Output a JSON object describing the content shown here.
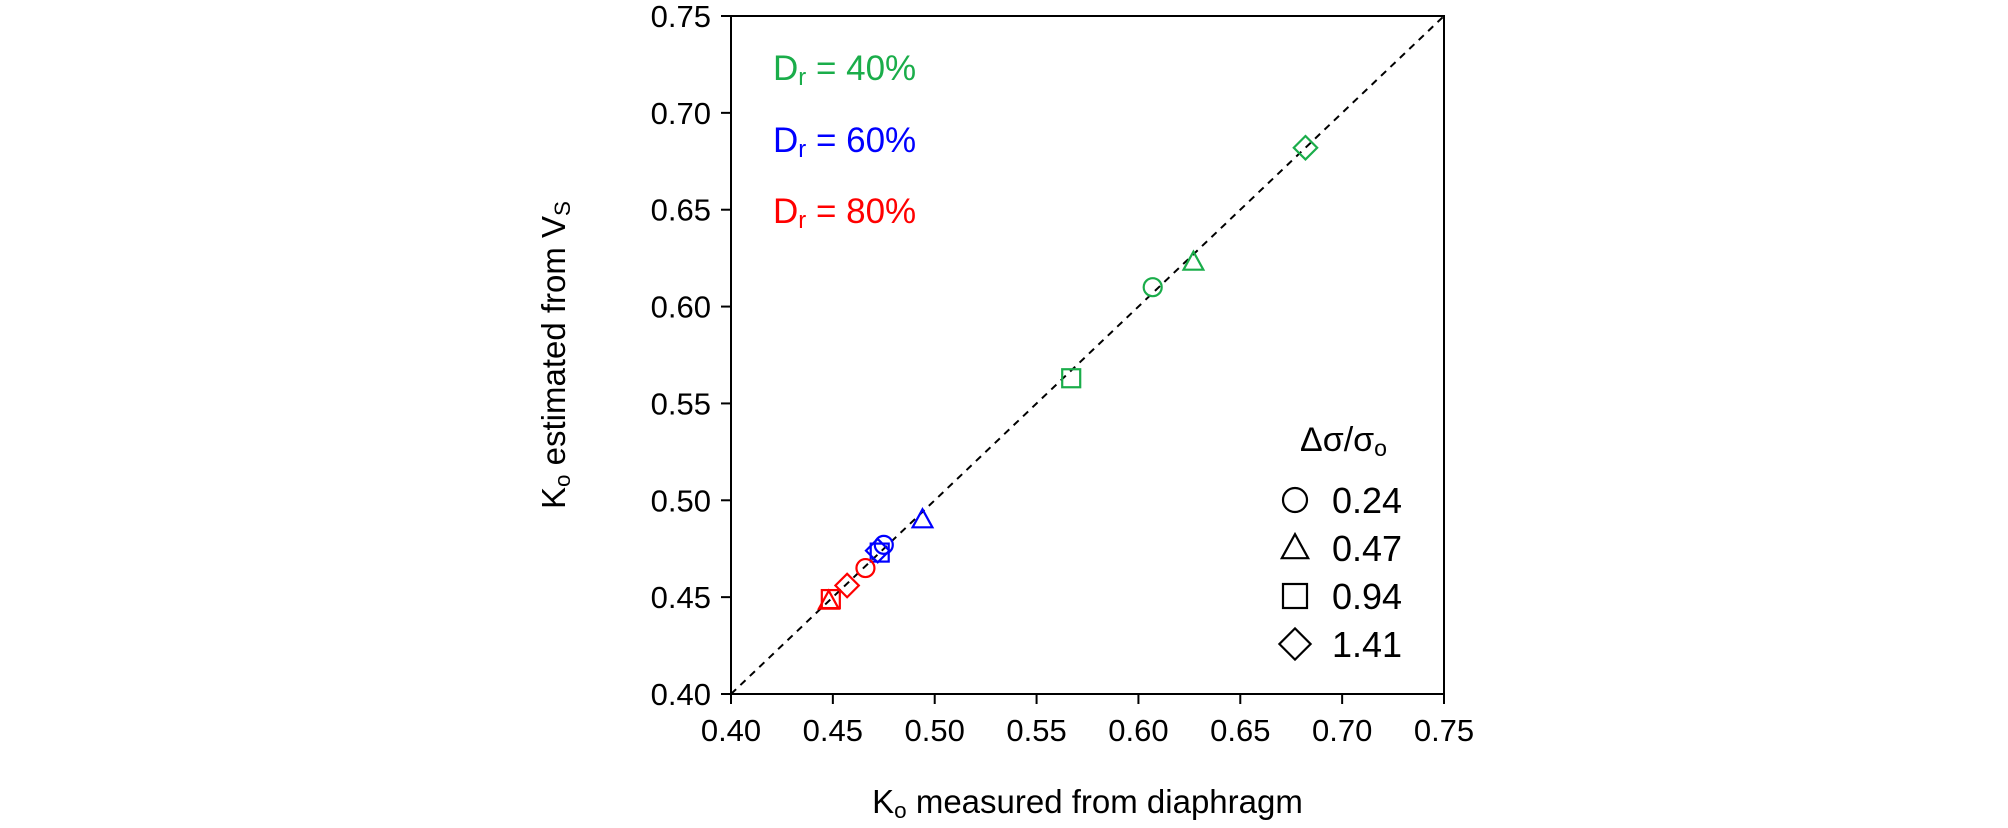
{
  "chart_data": {
    "type": "scatter",
    "xlabel": {
      "main": "K",
      "sub": "o",
      "rest": " measured from diaphragm"
    },
    "ylabel": {
      "main": "K",
      "sub": "o",
      "rest": " estimated from V",
      "sub2": "S"
    },
    "xlim": [
      0.4,
      0.75
    ],
    "ylim": [
      0.4,
      0.75
    ],
    "xticks": [
      "0.40",
      "0.45",
      "0.50",
      "0.55",
      "0.60",
      "0.65",
      "0.70",
      "0.75"
    ],
    "yticks": [
      "0.40",
      "0.45",
      "0.50",
      "0.55",
      "0.60",
      "0.65",
      "0.70",
      "0.75"
    ],
    "grid": false,
    "reference_line": {
      "style": "dashed",
      "from": [
        0.4,
        0.4
      ],
      "to": [
        0.75,
        0.75
      ]
    },
    "group_labels": [
      {
        "main": "D",
        "sub": "r",
        "rest": " = 40%",
        "color": "#1aad4a"
      },
      {
        "main": "D",
        "sub": "r",
        "rest": " = 60%",
        "color": "#0000ff"
      },
      {
        "main": "D",
        "sub": "r",
        "rest": " = 80%",
        "color": "#ff0000"
      }
    ],
    "legend": {
      "title": {
        "main": "Δσ/σ",
        "sub": "o"
      },
      "placement": "bottom-right",
      "entries": [
        {
          "marker": "circle",
          "label": "0.24"
        },
        {
          "marker": "triangle",
          "label": "0.47"
        },
        {
          "marker": "square",
          "label": "0.94"
        },
        {
          "marker": "diamond",
          "label": "1.41"
        }
      ]
    },
    "series": [
      {
        "group": 0,
        "color": "#1aad4a",
        "points": [
          {
            "x": 0.607,
            "y": 0.61,
            "marker": "circle"
          },
          {
            "x": 0.627,
            "y": 0.623,
            "marker": "triangle"
          },
          {
            "x": 0.567,
            "y": 0.563,
            "marker": "square"
          },
          {
            "x": 0.682,
            "y": 0.682,
            "marker": "diamond"
          }
        ]
      },
      {
        "group": 1,
        "color": "#0000ff",
        "points": [
          {
            "x": 0.475,
            "y": 0.477,
            "marker": "circle"
          },
          {
            "x": 0.494,
            "y": 0.49,
            "marker": "triangle"
          },
          {
            "x": 0.473,
            "y": 0.473,
            "marker": "square"
          },
          {
            "x": 0.472,
            "y": 0.474,
            "marker": "diamond"
          }
        ]
      },
      {
        "group": 2,
        "color": "#ff0000",
        "points": [
          {
            "x": 0.466,
            "y": 0.465,
            "marker": "circle"
          },
          {
            "x": 0.448,
            "y": 0.448,
            "marker": "triangle"
          },
          {
            "x": 0.449,
            "y": 0.449,
            "marker": "square"
          },
          {
            "x": 0.457,
            "y": 0.456,
            "marker": "diamond"
          }
        ]
      }
    ]
  }
}
